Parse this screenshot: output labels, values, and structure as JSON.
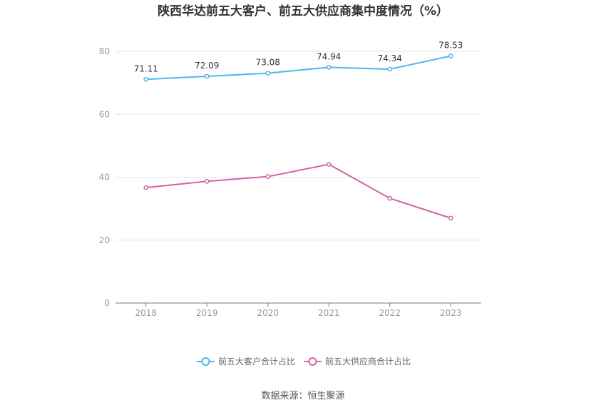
{
  "chart_data": {
    "type": "line",
    "title": "陕西华达前五大客户、前五大供应商集中度情况（%）",
    "categories": [
      "2018",
      "2019",
      "2020",
      "2021",
      "2022",
      "2023"
    ],
    "yticks": [
      "0",
      "20",
      "40",
      "60",
      "80"
    ],
    "ylim": [
      0,
      85
    ],
    "grid": true,
    "legend_position": "bottom",
    "series": [
      {
        "name": "前五大客户合计占比",
        "color": "#4ab8ec",
        "values": [
          71.11,
          72.09,
          73.08,
          74.94,
          74.34,
          78.53
        ],
        "labels": [
          "71.11",
          "72.09",
          "73.08",
          "74.94",
          "74.34",
          "78.53"
        ]
      },
      {
        "name": "前五大供应商合计占比",
        "color": "#d462a6",
        "values": [
          36.7,
          38.7,
          40.2,
          44.1,
          33.3,
          27.0
        ]
      }
    ],
    "source": "数据来源：恒生聚源"
  }
}
